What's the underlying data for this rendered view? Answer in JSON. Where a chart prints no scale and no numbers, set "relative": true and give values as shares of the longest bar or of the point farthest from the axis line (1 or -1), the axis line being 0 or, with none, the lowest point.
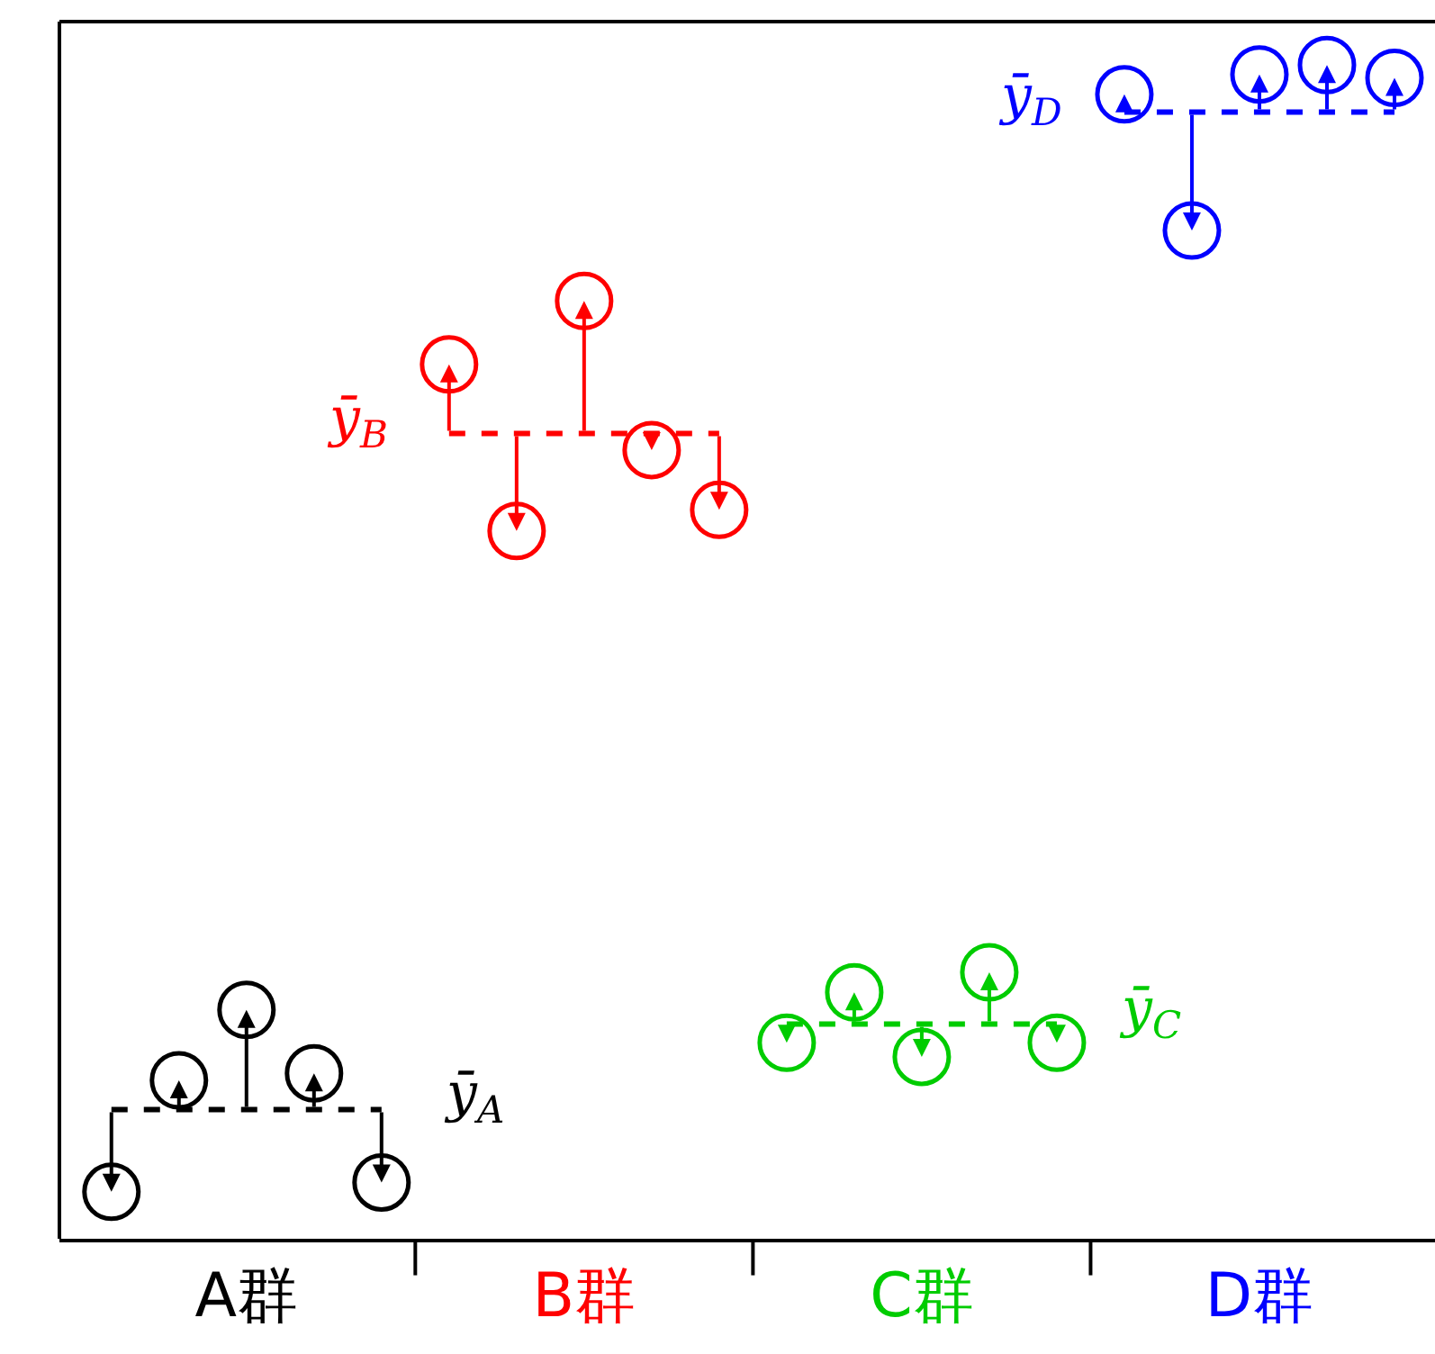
{
  "chart_data": {
    "type": "scatter",
    "relative": true,
    "marker": "circle",
    "grid": false,
    "categories": [
      null,
      null,
      "A群",
      null,
      null,
      null,
      null,
      "B群",
      null,
      null,
      null,
      null,
      "C群",
      null,
      null,
      null,
      null,
      "D群",
      null,
      null
    ],
    "series": [
      {
        "color": "#000000",
        "values": [
          0.04,
          0.135,
          0.195,
          0.141,
          0.048,
          null,
          null,
          null,
          null,
          null,
          null,
          null,
          null,
          null,
          null,
          null,
          null,
          null,
          null,
          null
        ]
      },
      {
        "type": "line",
        "color": "#000000",
        "marker": "none",
        "line_style": "dashed",
        "values": [
          0.11,
          0.11,
          0.11,
          0.11,
          0.11,
          null,
          null,
          null,
          null,
          null,
          null,
          null,
          null,
          null,
          null,
          null,
          null,
          null,
          null,
          null
        ]
      },
      {
        "color": "#ff0000",
        "values": [
          null,
          null,
          null,
          null,
          null,
          0.745,
          0.603,
          0.799,
          0.672,
          0.621,
          null,
          null,
          null,
          null,
          null,
          null,
          null,
          null,
          null,
          null
        ]
      },
      {
        "type": "line",
        "color": "#ff0000",
        "marker": "none",
        "line_style": "dashed",
        "values": [
          null,
          null,
          null,
          null,
          null,
          0.686,
          0.686,
          0.686,
          0.686,
          0.686,
          null,
          null,
          null,
          null,
          null,
          null,
          null,
          null,
          null,
          null
        ]
      },
      {
        "color": "#00cc00",
        "values": [
          null,
          null,
          null,
          null,
          null,
          null,
          null,
          null,
          null,
          null,
          0.167,
          0.21,
          0.155,
          0.227,
          0.167,
          null,
          null,
          null,
          null,
          null
        ]
      },
      {
        "type": "line",
        "color": "#00cc00",
        "marker": "none",
        "line_style": "dashed",
        "values": [
          null,
          null,
          null,
          null,
          null,
          null,
          null,
          null,
          null,
          null,
          0.183,
          0.183,
          0.183,
          0.183,
          0.183,
          null,
          null,
          null,
          null,
          null
        ]
      },
      {
        "color": "#0000ff",
        "values": [
          null,
          null,
          null,
          null,
          null,
          null,
          null,
          null,
          null,
          null,
          null,
          null,
          null,
          null,
          null,
          0.975,
          0.859,
          0.992,
          1,
          0.989
        ]
      },
      {
        "type": "line",
        "color": "#0000ff",
        "marker": "none",
        "line_style": "dashed",
        "values": [
          null,
          null,
          null,
          null,
          null,
          null,
          null,
          null,
          null,
          null,
          null,
          null,
          null,
          null,
          null,
          0.96,
          0.96,
          0.96,
          0.96,
          0.96
        ]
      }
    ],
    "annotations": [
      "ȳ$_{A}$",
      "ȳ$_{B}$",
      "ȳ$_{C}$",
      "ȳ$_{D}$"
    ]
  }
}
